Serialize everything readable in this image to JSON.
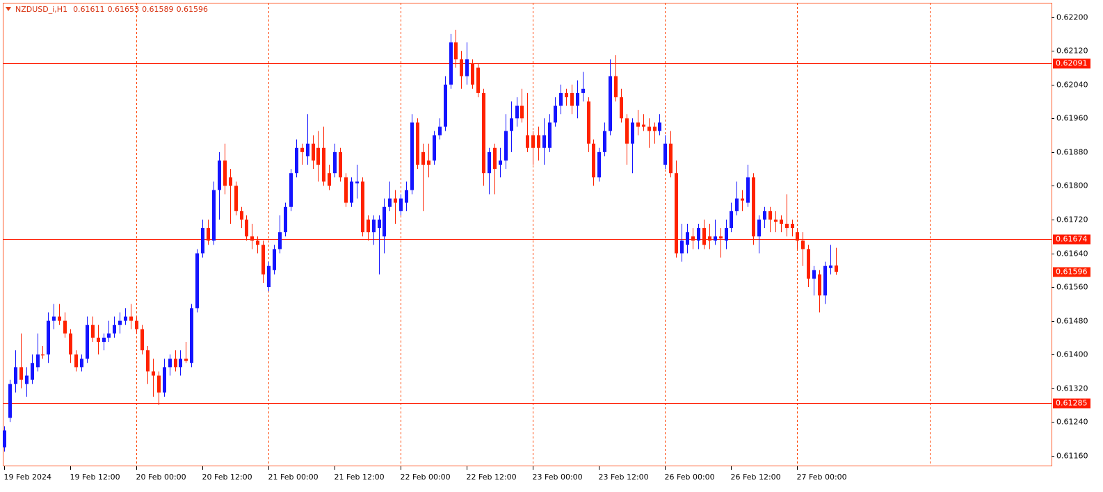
{
  "chart_data": {
    "type": "candlestick",
    "symbol": "NZDUSD_i,H1",
    "up_color": "#1414ff",
    "down_color": "#ff2200",
    "grid": true,
    "grid_color": "#ff4500",
    "level_color": "#ff1a00",
    "ylim": [
      0.61135,
      0.62234
    ],
    "yticks": [
      {
        "value": 0.622,
        "label": "0.62200"
      },
      {
        "value": 0.6212,
        "label": "0.62120"
      },
      {
        "value": 0.6204,
        "label": "0.62040"
      },
      {
        "value": 0.6196,
        "label": "0.61960"
      },
      {
        "value": 0.6188,
        "label": "0.61880"
      },
      {
        "value": 0.618,
        "label": "0.61800"
      },
      {
        "value": 0.6172,
        "label": "0.61720"
      },
      {
        "value": 0.6164,
        "label": "0.61640"
      },
      {
        "value": 0.6156,
        "label": "0.61560"
      },
      {
        "value": 0.6148,
        "label": "0.61480"
      },
      {
        "value": 0.614,
        "label": "0.61400"
      },
      {
        "value": 0.6132,
        "label": "0.61320"
      },
      {
        "value": 0.6124,
        "label": "0.61240"
      },
      {
        "value": 0.6116,
        "label": "0.61160"
      }
    ],
    "levels": [
      0.62091,
      0.61674,
      0.61285
    ],
    "categories": [
      "19 Feb 2024",
      null,
      null,
      null,
      null,
      null,
      null,
      null,
      null,
      null,
      null,
      null,
      "19 Feb 12:00",
      null,
      null,
      null,
      null,
      null,
      null,
      null,
      null,
      null,
      null,
      null,
      "20 Feb 00:00",
      null,
      null,
      null,
      null,
      null,
      null,
      null,
      null,
      null,
      null,
      null,
      "20 Feb 12:00",
      null,
      null,
      null,
      null,
      null,
      null,
      null,
      null,
      null,
      null,
      null,
      "21 Feb 00:00",
      null,
      null,
      null,
      null,
      null,
      null,
      null,
      null,
      null,
      null,
      null,
      "21 Feb 12:00",
      null,
      null,
      null,
      null,
      null,
      null,
      null,
      null,
      null,
      null,
      null,
      "22 Feb 00:00",
      null,
      null,
      null,
      null,
      null,
      null,
      null,
      null,
      null,
      null,
      null,
      "22 Feb 12:00",
      null,
      null,
      null,
      null,
      null,
      null,
      null,
      null,
      null,
      null,
      null,
      "23 Feb 00:00",
      null,
      null,
      null,
      null,
      null,
      null,
      null,
      null,
      null,
      null,
      null,
      "23 Feb 12:00",
      null,
      null,
      null,
      null,
      null,
      null,
      null,
      null,
      null,
      null,
      null,
      "26 Feb 00:00",
      null,
      null,
      null,
      null,
      null,
      null,
      null,
      null,
      null,
      null,
      null,
      "26 Feb 12:00",
      null,
      null,
      null,
      null,
      null,
      null,
      null,
      null,
      null,
      null,
      null,
      "27 Feb 00:00",
      null,
      null,
      null,
      null,
      null,
      null,
      null
    ],
    "open": [
      0.6118,
      0.6125,
      0.6133,
      0.6137,
      0.6133,
      0.6134,
      0.6137,
      0.614,
      0.614,
      0.6148,
      0.6149,
      0.6148,
      0.6145,
      0.614,
      0.6137,
      0.6139,
      0.6147,
      0.6144,
      0.6143,
      0.6144,
      0.6145,
      0.6147,
      0.6148,
      0.6149,
      0.6148,
      0.6146,
      0.6141,
      0.6136,
      0.6135,
      0.6131,
      0.6137,
      0.6139,
      0.6137,
      0.6139,
      0.6138,
      0.6151,
      0.6164,
      0.617,
      0.6167,
      0.6179,
      0.6186,
      0.6182,
      0.618,
      0.6174,
      0.6172,
      0.6168,
      0.6167,
      0.6166,
      0.6156,
      0.616,
      0.6165,
      0.6169,
      0.6175,
      0.6183,
      0.6189,
      0.6187,
      0.619,
      0.6189,
      0.6189,
      0.6183,
      0.6183,
      0.6188,
      0.6182,
      0.6176,
      0.61806,
      0.6181,
      0.6172,
      0.6169,
      0.617,
      0.6168,
      0.6175,
      0.6177,
      0.6174,
      0.6176,
      0.6179,
      0.6195,
      0.6188,
      0.6186,
      0.6186,
      0.6192,
      0.6194,
      0.6204,
      0.6214,
      0.621,
      0.6206,
      0.6209,
      0.6208,
      0.6202,
      0.6183,
      0.6189,
      0.6185,
      0.6186,
      0.6193,
      0.6196,
      0.6199,
      0.6192,
      0.6192,
      0.6192,
      0.6189,
      0.6189,
      0.6195,
      0.6199,
      0.6202,
      0.6202,
      0.6199,
      0.6202,
      0.62,
      0.619,
      0.6182,
      0.6188,
      0.6193,
      0.6206,
      0.6201,
      0.6196,
      0.619,
      0.6195,
      0.61945,
      0.6194,
      0.6194,
      0.6193,
      0.6185,
      0.619,
      0.6183,
      0.6164,
      0.6166,
      0.6168,
      0.6167,
      0.617,
      0.6168,
      0.6167,
      0.6168,
      0.6167,
      0.617,
      0.6174,
      0.6177,
      0.6176,
      0.6182,
      0.6168,
      0.6172,
      0.6174,
      0.6172,
      0.6172,
      0.6171,
      0.6171,
      0.6169,
      0.6167,
      0.6165,
      0.6158,
      0.6159,
      0.6154,
      0.61605,
      0.61611
    ],
    "high": [
      0.6123,
      0.6134,
      0.6141,
      0.6145,
      0.6137,
      0.614,
      0.6145,
      0.6142,
      0.615,
      0.6152,
      0.6152,
      0.615,
      0.6146,
      0.6141,
      0.614,
      0.6149,
      0.6149,
      0.6147,
      0.6145,
      0.6148,
      0.6149,
      0.615,
      0.6151,
      0.6152,
      0.6149,
      0.6147,
      0.6142,
      0.6139,
      0.6136,
      0.6139,
      0.614,
      0.6141,
      0.6141,
      0.6143,
      0.6152,
      0.6165,
      0.6172,
      0.6172,
      0.6181,
      0.6188,
      0.619,
      0.6184,
      0.6181,
      0.6175,
      0.6173,
      0.6171,
      0.6168,
      0.6167,
      0.6162,
      0.6166,
      0.6173,
      0.6176,
      0.6184,
      0.6191,
      0.619,
      0.6197,
      0.6192,
      0.6193,
      0.6194,
      0.6185,
      0.619,
      0.6189,
      0.6183,
      0.6182,
      0.6185,
      0.6182,
      0.6173,
      0.6173,
      0.6173,
      0.6177,
      0.6181,
      0.6179,
      0.6178,
      0.6181,
      0.6197,
      0.6196,
      0.619,
      0.619,
      0.6193,
      0.6196,
      0.6206,
      0.6216,
      0.6217,
      0.6212,
      0.6214,
      0.621,
      0.6209,
      0.6203,
      0.6189,
      0.619,
      0.6189,
      0.6197,
      0.62,
      0.6201,
      0.6203,
      0.6202,
      0.6193,
      0.6194,
      0.6196,
      0.6197,
      0.6201,
      0.6204,
      0.6203,
      0.6204,
      0.6205,
      0.6207,
      0.6201,
      0.6191,
      0.6189,
      0.6195,
      0.621,
      0.6211,
      0.6203,
      0.6197,
      0.6196,
      0.6198,
      0.6197,
      0.6196,
      0.6195,
      0.6197,
      0.6192,
      0.6193,
      0.6186,
      0.6171,
      0.6171,
      0.617,
      0.6171,
      0.6172,
      0.6171,
      0.6172,
      0.617,
      0.6172,
      0.6176,
      0.6181,
      0.6179,
      0.6185,
      0.6183,
      0.6173,
      0.6175,
      0.6175,
      0.6174,
      0.6173,
      0.6178,
      0.6172,
      0.617,
      0.6169,
      0.6166,
      0.6161,
      0.616,
      0.6162,
      0.6166,
      0.61653
    ],
    "low": [
      0.6117,
      0.6124,
      0.6131,
      0.6132,
      0.613,
      0.6133,
      0.6136,
      0.6139,
      0.6138,
      0.6146,
      0.6147,
      0.6144,
      0.6138,
      0.6136,
      0.6136,
      0.6138,
      0.6143,
      0.614,
      0.6141,
      0.6143,
      0.6144,
      0.6145,
      0.6147,
      0.6146,
      0.6145,
      0.614,
      0.6133,
      0.613,
      0.6128,
      0.613,
      0.6135,
      0.6136,
      0.6135,
      0.6138,
      0.6137,
      0.615,
      0.6163,
      0.6166,
      0.6166,
      0.6172,
      0.6178,
      0.6171,
      0.6173,
      0.617,
      0.6167,
      0.6165,
      0.6164,
      0.6157,
      0.6155,
      0.6159,
      0.6164,
      0.6168,
      0.6174,
      0.6182,
      0.6185,
      0.6185,
      0.6184,
      0.6181,
      0.618,
      0.6179,
      0.6182,
      0.6181,
      0.6175,
      0.6175,
      0.6177,
      0.6168,
      0.6167,
      0.6166,
      0.6159,
      0.6164,
      0.6174,
      0.6171,
      0.6173,
      0.6174,
      0.6178,
      0.6184,
      0.6174,
      0.6182,
      0.6185,
      0.6191,
      0.6193,
      0.6203,
      0.6208,
      0.6203,
      0.6204,
      0.6203,
      0.6201,
      0.618,
      0.6178,
      0.6178,
      0.6182,
      0.6184,
      0.6188,
      0.6194,
      0.6195,
      0.6188,
      0.6185,
      0.6186,
      0.6185,
      0.6188,
      0.6194,
      0.6197,
      0.6199,
      0.6197,
      0.6196,
      0.62,
      0.6188,
      0.618,
      0.6181,
      0.6187,
      0.6192,
      0.62,
      0.6195,
      0.6185,
      0.6183,
      0.6192,
      0.6193,
      0.6189,
      0.619,
      0.6192,
      0.6184,
      0.6182,
      0.6163,
      0.6162,
      0.6164,
      0.6165,
      0.6165,
      0.6165,
      0.6165,
      0.6166,
      0.6163,
      0.6165,
      0.6169,
      0.6173,
      0.6174,
      0.6175,
      0.6166,
      0.6164,
      0.617,
      0.6169,
      0.6169,
      0.6169,
      0.6168,
      0.6168,
      0.6165,
      0.6161,
      0.6156,
      0.6154,
      0.615,
      0.6152,
      0.6159,
      0.61589
    ],
    "close": [
      0.6122,
      0.6133,
      0.6137,
      0.6134,
      0.6135,
      0.6138,
      0.614,
      0.61398,
      0.6148,
      0.6149,
      0.6148,
      0.6145,
      0.614,
      0.6137,
      0.6139,
      0.6147,
      0.6144,
      0.6143,
      0.6144,
      0.6145,
      0.6147,
      0.6148,
      0.6149,
      0.6148,
      0.6146,
      0.6141,
      0.6136,
      0.6135,
      0.6131,
      0.6137,
      0.6139,
      0.6137,
      0.6139,
      0.61385,
      0.6151,
      0.6164,
      0.617,
      0.6167,
      0.6179,
      0.6186,
      0.618,
      0.618,
      0.6174,
      0.6172,
      0.6168,
      0.6167,
      0.6166,
      0.6159,
      0.6161,
      0.6165,
      0.6169,
      0.6175,
      0.6183,
      0.6189,
      0.6188,
      0.619,
      0.6186,
      0.6185,
      0.6181,
      0.618,
      0.6188,
      0.6182,
      0.6176,
      0.6181,
      0.6181,
      0.6169,
      0.6169,
      0.6172,
      0.6172,
      0.6175,
      0.6177,
      0.6176,
      0.6177,
      0.6179,
      0.6195,
      0.6185,
      0.6185,
      0.6185,
      0.6192,
      0.6194,
      0.6204,
      0.6214,
      0.621,
      0.6206,
      0.621,
      0.6204,
      0.6202,
      0.6183,
      0.6188,
      0.6184,
      0.6186,
      0.6193,
      0.6196,
      0.6199,
      0.6196,
      0.6189,
      0.6189,
      0.6189,
      0.6192,
      0.6195,
      0.6199,
      0.6202,
      0.6201,
      0.6199,
      0.6202,
      0.6203,
      0.619,
      0.6182,
      0.6188,
      0.6193,
      0.6206,
      0.6201,
      0.6196,
      0.619,
      0.6195,
      0.6194,
      0.6194,
      0.6193,
      0.6193,
      0.6195,
      0.619,
      0.6183,
      0.6164,
      0.6167,
      0.6169,
      0.6167,
      0.617,
      0.6166,
      0.6167,
      0.6168,
      0.61675,
      0.617,
      0.6174,
      0.6177,
      0.61765,
      0.6182,
      0.6168,
      0.6172,
      0.6174,
      0.6172,
      0.61715,
      0.6171,
      0.617,
      0.617,
      0.6167,
      0.6165,
      0.6158,
      0.616,
      0.6154,
      0.6161,
      0.61611,
      0.61596
    ]
  }
}
